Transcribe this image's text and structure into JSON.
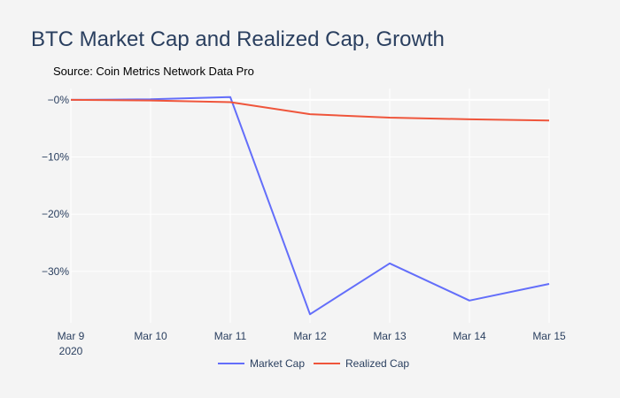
{
  "chart_data": {
    "type": "line",
    "title": "BTC Market Cap and Realized Cap, Growth",
    "subtitle": "Source: Coin Metrics Network Data Pro",
    "x": [
      "Mar 9",
      "Mar 10",
      "Mar 11",
      "Mar 12",
      "Mar 13",
      "Mar 14",
      "Mar 15"
    ],
    "x_year_label": "2020",
    "y_ticks": [
      {
        "value": 0,
        "label": "−0%"
      },
      {
        "value": -10,
        "label": "−10%"
      },
      {
        "value": -20,
        "label": "−20%"
      },
      {
        "value": -30,
        "label": "−30%"
      }
    ],
    "ylim": [
      -39,
      2
    ],
    "grid": true,
    "legend_position": "bottom-center",
    "series": [
      {
        "name": "Market Cap",
        "color": "#636efa",
        "values": [
          0,
          0.1,
          0.5,
          -37.5,
          -28.6,
          -35.1,
          -32.2
        ]
      },
      {
        "name": "Realized Cap",
        "color": "#ef553b",
        "values": [
          0,
          -0.1,
          -0.4,
          -2.5,
          -3.1,
          -3.4,
          -3.6
        ]
      }
    ]
  }
}
